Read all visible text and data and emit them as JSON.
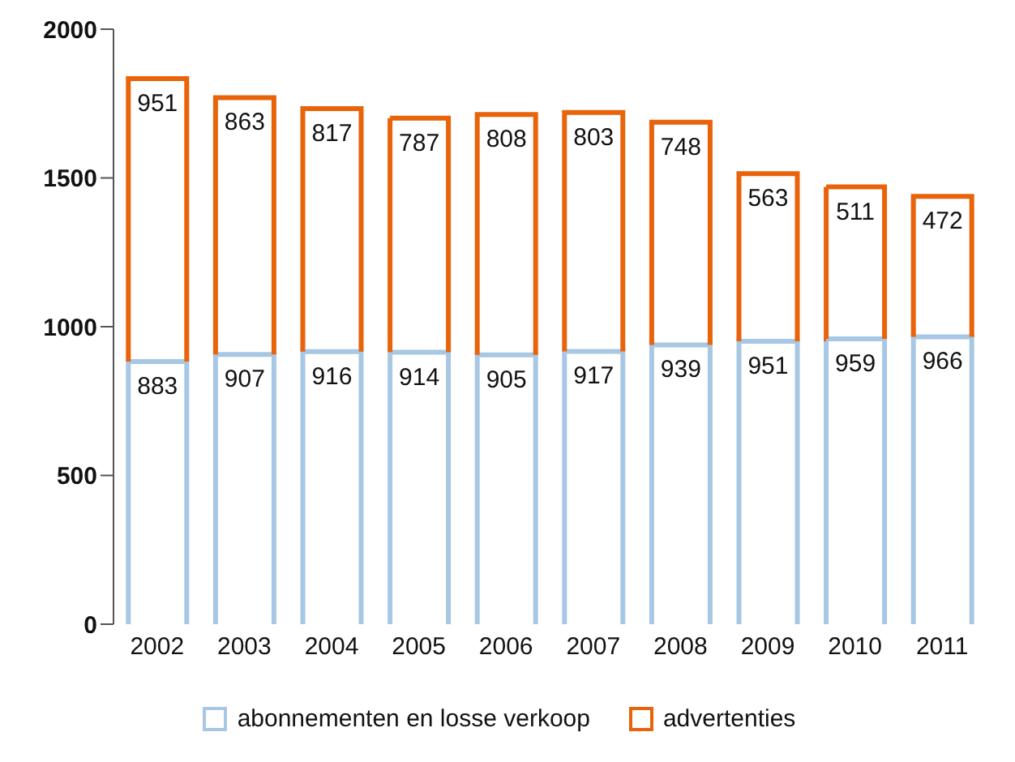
{
  "chart_data": {
    "type": "bar",
    "stacked": true,
    "categories": [
      "2002",
      "2003",
      "2004",
      "2005",
      "2006",
      "2007",
      "2008",
      "2009",
      "2010",
      "2011"
    ],
    "series": [
      {
        "name": "abonnementen en losse verkoop",
        "color": "#a7c7e4",
        "values": [
          883,
          907,
          916,
          914,
          905,
          917,
          939,
          951,
          959,
          966
        ]
      },
      {
        "name": "advertenties",
        "color": "#e8630a",
        "values": [
          951,
          863,
          817,
          787,
          808,
          803,
          748,
          563,
          511,
          472
        ]
      }
    ],
    "ylim": [
      0,
      2000
    ],
    "yticks": [
      0,
      500,
      1000,
      1500,
      2000
    ],
    "data_labels": true,
    "legend": "bottom"
  }
}
